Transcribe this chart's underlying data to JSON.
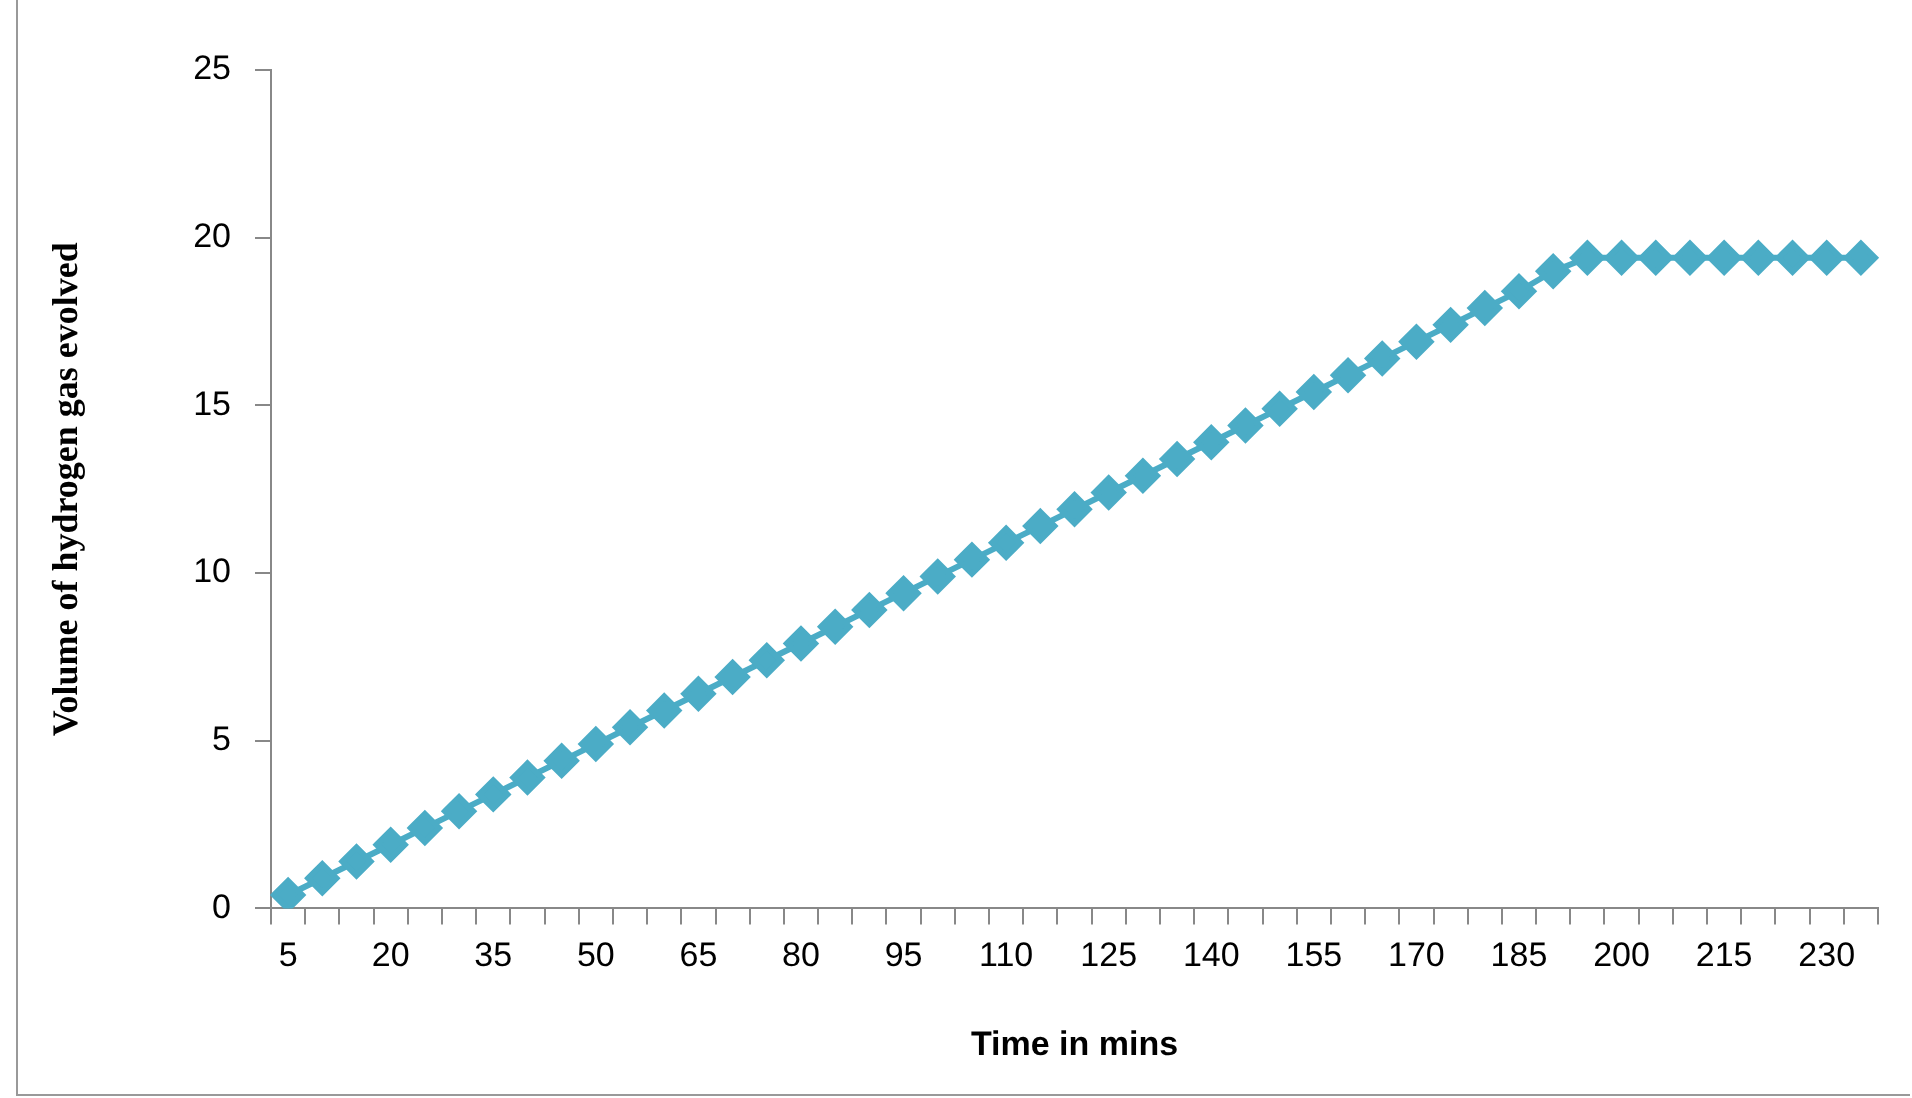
{
  "chart_data": {
    "type": "line",
    "xlabel": "Time in mins",
    "ylabel": "Volume of hydrogen gas evolved",
    "categories": [
      "5",
      null,
      null,
      "20",
      null,
      null,
      "35",
      null,
      null,
      "50",
      null,
      null,
      "65",
      null,
      null,
      "80",
      null,
      null,
      "95",
      null,
      null,
      "110",
      null,
      null,
      "125",
      null,
      null,
      "140",
      null,
      null,
      "155",
      null,
      null,
      "170",
      null,
      null,
      "185",
      null,
      null,
      "200",
      null,
      null,
      "215",
      null,
      null,
      "230",
      null
    ],
    "series": [
      {
        "color": "#4bacc6",
        "values": [
          0.4,
          0.9,
          1.4,
          1.9,
          2.4,
          2.9,
          3.4,
          3.9,
          4.4,
          4.9,
          5.4,
          5.9,
          6.4,
          6.9,
          7.4,
          7.9,
          8.4,
          8.9,
          9.4,
          9.9,
          10.4,
          10.9,
          11.4,
          11.9,
          12.4,
          12.9,
          13.4,
          13.9,
          14.4,
          14.9,
          15.4,
          15.9,
          16.4,
          16.9,
          17.4,
          17.9,
          18.4,
          19.0,
          19.4,
          19.4,
          19.4,
          19.4,
          19.4,
          19.4,
          19.4,
          19.4,
          19.4
        ]
      }
    ],
    "ylim": [
      0,
      25
    ],
    "yticks": [
      0,
      5,
      10,
      15,
      20,
      25
    ],
    "grid": false,
    "legend": false,
    "marker": "diamond",
    "line_style": "solid"
  }
}
